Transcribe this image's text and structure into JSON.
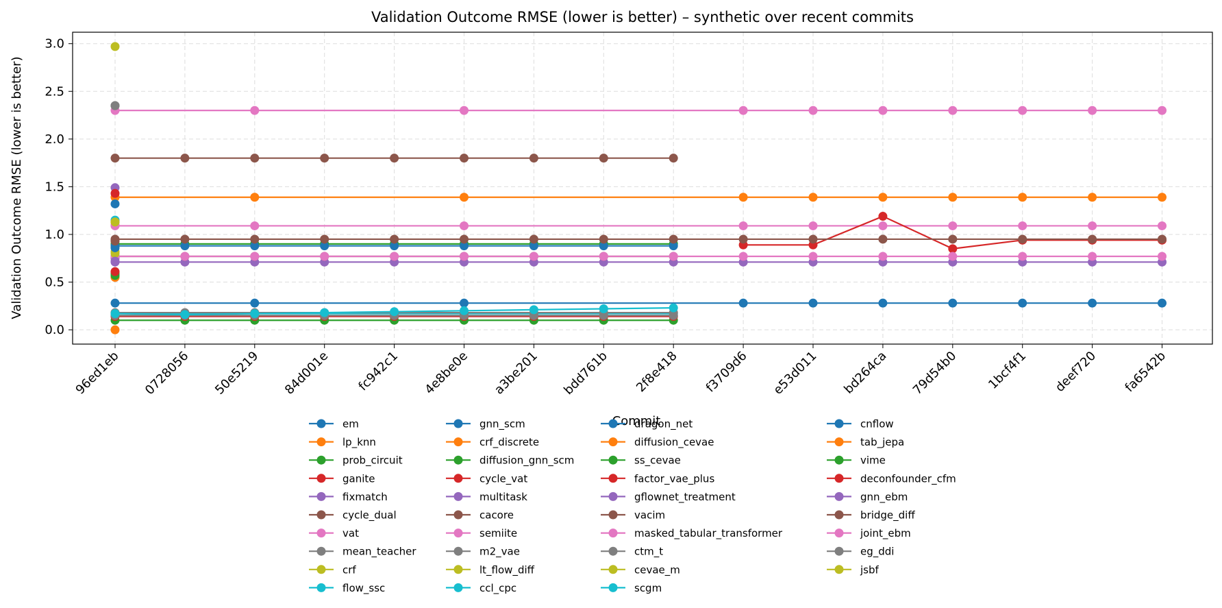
{
  "chart_data": {
    "type": "line",
    "title": "Validation Outcome RMSE (lower is better) – synthetic over recent commits",
    "xlabel": "Commit",
    "ylabel": "Validation Outcome RMSE (lower is better)",
    "categories": [
      "96ed1eb",
      "0728056",
      "50e5219",
      "84d001e",
      "fc942c1",
      "4e8be0e",
      "a3be201",
      "bdd761b",
      "2f8e418",
      "f3709d6",
      "e53d011",
      "bd264ca",
      "79d54b0",
      "1bcf4f1",
      "deef720",
      "fa6542b"
    ],
    "ylim": [
      -0.15,
      3.12
    ],
    "yticks": [
      "0.0",
      "0.5",
      "1.0",
      "1.5",
      "2.0",
      "2.5",
      "3.0"
    ],
    "grid": true,
    "legend_position": "bottom",
    "series": [
      {
        "name": "em",
        "color": "#1f77b4",
        "values": [
          0.28,
          null,
          0.28,
          null,
          null,
          0.28,
          null,
          null,
          null,
          0.28,
          0.28,
          0.28,
          0.28,
          0.28,
          0.28,
          0.28
        ]
      },
      {
        "name": "lp_knn",
        "color": "#ff7f0e",
        "values": [
          1.39,
          null,
          1.39,
          null,
          null,
          1.39,
          null,
          null,
          null,
          1.39,
          1.39,
          1.39,
          1.39,
          1.39,
          1.39,
          1.39
        ]
      },
      {
        "name": "prob_circuit",
        "color": "#2ca02c",
        "values": [
          0.1,
          0.1,
          0.1,
          0.1,
          0.1,
          0.1,
          0.1,
          0.1,
          0.1,
          null,
          null,
          null,
          null,
          null,
          null,
          null
        ]
      },
      {
        "name": "ganite",
        "color": "#d62728",
        "values": [
          0.14,
          0.14,
          0.14,
          0.14,
          0.14,
          0.14,
          0.14,
          0.14,
          0.14,
          null,
          null,
          null,
          null,
          null,
          null,
          null
        ]
      },
      {
        "name": "fixmatch",
        "color": "#9467bd",
        "values": [
          1.49,
          null,
          null,
          null,
          null,
          null,
          null,
          null,
          null,
          null,
          null,
          null,
          null,
          null,
          null,
          null
        ]
      },
      {
        "name": "cycle_dual",
        "color": "#8c564b",
        "values": [
          1.8,
          1.8,
          1.8,
          1.8,
          1.8,
          1.8,
          1.8,
          1.8,
          1.8,
          null,
          null,
          null,
          null,
          null,
          null,
          null
        ]
      },
      {
        "name": "vat",
        "color": "#e377c2",
        "values": [
          2.3,
          null,
          2.3,
          null,
          null,
          2.3,
          null,
          null,
          null,
          2.3,
          2.3,
          2.3,
          2.3,
          2.3,
          2.3,
          2.3
        ]
      },
      {
        "name": "mean_teacher",
        "color": "#7f7f7f",
        "values": [
          2.35,
          null,
          null,
          null,
          null,
          null,
          null,
          null,
          null,
          null,
          null,
          null,
          null,
          null,
          null,
          null
        ]
      },
      {
        "name": "crf",
        "color": "#bcbd22",
        "values": [
          2.97,
          null,
          null,
          null,
          null,
          null,
          null,
          null,
          null,
          null,
          null,
          null,
          null,
          null,
          null,
          null
        ]
      },
      {
        "name": "flow_ssc",
        "color": "#17becf",
        "values": [
          0.17,
          0.17,
          0.17,
          0.17,
          0.17,
          0.17,
          0.17,
          0.17,
          0.17,
          null,
          null,
          null,
          null,
          null,
          null,
          null
        ]
      },
      {
        "name": "gnn_scm",
        "color": "#1f77b4",
        "values": [
          1.32,
          null,
          null,
          null,
          null,
          null,
          null,
          null,
          null,
          null,
          null,
          null,
          null,
          null,
          null,
          null
        ]
      },
      {
        "name": "crf_discrete",
        "color": "#ff7f0e",
        "values": [
          0.0,
          null,
          null,
          null,
          null,
          null,
          null,
          null,
          null,
          null,
          null,
          null,
          null,
          null,
          null,
          null
        ]
      },
      {
        "name": "diffusion_gnn_scm",
        "color": "#2ca02c",
        "values": [
          0.9,
          0.9,
          0.9,
          0.9,
          0.9,
          0.9,
          0.9,
          0.9,
          0.9,
          null,
          null,
          null,
          null,
          null,
          null,
          null
        ]
      },
      {
        "name": "cycle_vat",
        "color": "#d62728",
        "values": [
          1.43,
          null,
          null,
          null,
          null,
          null,
          null,
          null,
          null,
          null,
          null,
          null,
          null,
          null,
          null,
          null
        ]
      },
      {
        "name": "multitask",
        "color": "#9467bd",
        "values": [
          0.71,
          0.71,
          0.71,
          0.71,
          0.71,
          0.71,
          0.71,
          0.71,
          0.71,
          0.71,
          0.71,
          0.71,
          0.71,
          0.71,
          0.71,
          0.71
        ]
      },
      {
        "name": "cacore",
        "color": "#8c564b",
        "values": [
          0.77,
          0.77,
          0.77,
          0.77,
          0.77,
          0.77,
          0.77,
          0.77,
          0.77,
          null,
          null,
          null,
          null,
          null,
          null,
          null
        ]
      },
      {
        "name": "semiite",
        "color": "#e377c2",
        "values": [
          1.09,
          null,
          1.09,
          null,
          null,
          1.09,
          null,
          null,
          null,
          1.09,
          1.09,
          1.09,
          1.09,
          1.09,
          1.09,
          1.09
        ]
      },
      {
        "name": "m2_vae",
        "color": "#7f7f7f",
        "values": [
          0.18,
          0.18,
          0.18,
          0.18,
          0.18,
          0.18,
          0.18,
          0.18,
          0.18,
          null,
          null,
          null,
          null,
          null,
          null,
          null
        ]
      },
      {
        "name": "lt_flow_diff",
        "color": "#bcbd22",
        "values": [
          0.82,
          null,
          null,
          null,
          null,
          null,
          null,
          null,
          null,
          null,
          null,
          null,
          null,
          null,
          null,
          null
        ]
      },
      {
        "name": "ccl_cpc",
        "color": "#17becf",
        "values": [
          1.15,
          null,
          null,
          null,
          null,
          null,
          null,
          null,
          null,
          null,
          null,
          null,
          null,
          null,
          null,
          null
        ]
      },
      {
        "name": "dragon_net",
        "color": "#1f77b4",
        "values": [
          0.88,
          0.88,
          0.88,
          0.88,
          0.88,
          0.88,
          0.88,
          0.88,
          0.88,
          null,
          null,
          null,
          null,
          null,
          null,
          null
        ]
      },
      {
        "name": "diffusion_cevae",
        "color": "#ff7f0e",
        "values": [
          0.55,
          null,
          null,
          null,
          null,
          null,
          null,
          null,
          null,
          null,
          null,
          null,
          null,
          null,
          null,
          null
        ]
      },
      {
        "name": "ss_cevae",
        "color": "#2ca02c",
        "values": [
          0.57,
          null,
          null,
          null,
          null,
          null,
          null,
          null,
          null,
          null,
          null,
          null,
          null,
          null,
          null,
          null
        ]
      },
      {
        "name": "factor_vae_plus",
        "color": "#d62728",
        "values": [
          null,
          null,
          null,
          null,
          null,
          null,
          null,
          null,
          null,
          0.89,
          0.89,
          1.19,
          0.85,
          0.94,
          0.94,
          0.94
        ]
      },
      {
        "name": "gflownet_treatment",
        "color": "#9467bd",
        "values": [
          0.75,
          null,
          null,
          null,
          null,
          null,
          null,
          null,
          null,
          null,
          null,
          null,
          null,
          null,
          null,
          null
        ]
      },
      {
        "name": "vacim",
        "color": "#8c564b",
        "values": [
          0.95,
          0.95,
          0.95,
          0.95,
          0.95,
          0.95,
          0.95,
          0.95,
          0.95,
          0.95,
          0.95,
          0.95,
          0.95,
          0.95,
          0.95,
          0.95
        ]
      },
      {
        "name": "masked_tabular_transformer",
        "color": "#e377c2",
        "values": [
          0.77,
          0.77,
          0.77,
          0.77,
          0.77,
          0.77,
          0.77,
          0.77,
          0.77,
          0.77,
          0.77,
          0.77,
          0.77,
          0.77,
          0.77,
          0.77
        ]
      },
      {
        "name": "ctm_t",
        "color": "#7f7f7f",
        "values": [
          0.15,
          0.15,
          0.15,
          0.15,
          0.15,
          0.15,
          0.15,
          0.15,
          0.15,
          null,
          null,
          null,
          null,
          null,
          null,
          null
        ]
      },
      {
        "name": "cevae_m",
        "color": "#bcbd22",
        "values": [
          0.8,
          null,
          null,
          null,
          null,
          null,
          null,
          null,
          null,
          null,
          null,
          null,
          null,
          null,
          null,
          null
        ]
      },
      {
        "name": "scgm",
        "color": "#17becf",
        "values": [
          0.17,
          0.16,
          0.17,
          0.18,
          0.19,
          0.2,
          0.21,
          0.22,
          0.23,
          null,
          null,
          null,
          null,
          null,
          null,
          null
        ]
      },
      {
        "name": "cnflow",
        "color": "#1f77b4",
        "values": [
          0.86,
          null,
          null,
          null,
          null,
          null,
          null,
          null,
          null,
          null,
          null,
          null,
          null,
          null,
          null,
          null
        ]
      },
      {
        "name": "tab_jepa",
        "color": "#ff7f0e",
        "values": [
          1.13,
          null,
          null,
          null,
          null,
          null,
          null,
          null,
          null,
          null,
          null,
          null,
          null,
          null,
          null,
          null
        ]
      },
      {
        "name": "vime",
        "color": "#2ca02c",
        "values": [
          0.59,
          null,
          null,
          null,
          null,
          null,
          null,
          null,
          null,
          null,
          null,
          null,
          null,
          null,
          null,
          null
        ]
      },
      {
        "name": "deconfounder_cfm",
        "color": "#d62728",
        "values": [
          0.61,
          null,
          null,
          null,
          null,
          null,
          null,
          null,
          null,
          null,
          null,
          null,
          null,
          null,
          null,
          null
        ]
      },
      {
        "name": "gnn_ebm",
        "color": "#9467bd",
        "values": [
          0.72,
          null,
          null,
          null,
          null,
          null,
          null,
          null,
          null,
          null,
          null,
          null,
          null,
          null,
          null,
          null
        ]
      },
      {
        "name": "bridge_diff",
        "color": "#8c564b",
        "values": [
          0.93,
          null,
          null,
          null,
          null,
          null,
          null,
          null,
          null,
          null,
          null,
          null,
          null,
          null,
          null,
          null
        ]
      },
      {
        "name": "joint_ebm",
        "color": "#e377c2",
        "values": [
          1.1,
          null,
          null,
          null,
          null,
          null,
          null,
          null,
          null,
          null,
          null,
          null,
          null,
          null,
          null,
          null
        ]
      },
      {
        "name": "eg_ddi",
        "color": "#7f7f7f",
        "values": [
          2.35,
          null,
          null,
          null,
          null,
          null,
          null,
          null,
          null,
          null,
          null,
          null,
          null,
          null,
          null,
          null
        ]
      },
      {
        "name": "jsbf",
        "color": "#bcbd22",
        "values": [
          1.13,
          null,
          null,
          null,
          null,
          null,
          null,
          null,
          null,
          null,
          null,
          null,
          null,
          null,
          null,
          null
        ]
      }
    ]
  }
}
